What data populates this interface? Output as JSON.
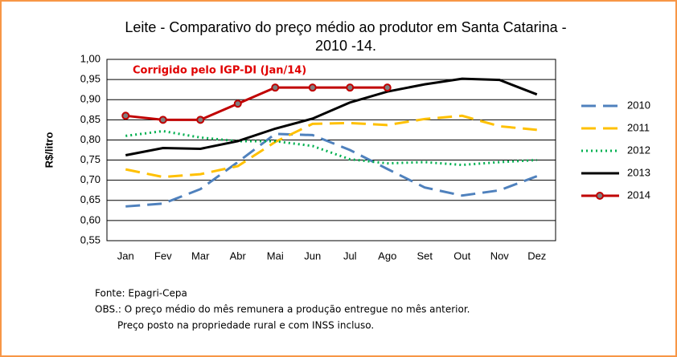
{
  "chart_data": {
    "type": "line",
    "title": [
      "Leite - Comparativo do preço médio ao produtor em Santa Catarina -",
      "2010 -14."
    ],
    "annotation": "Corrigido pelo IGP-DI (Jan/14)",
    "y_label": "R$/litro",
    "categories": [
      "Jan",
      "Fev",
      "Mar",
      "Abr",
      "Mai",
      "Jun",
      "Jul",
      "Ago",
      "Set",
      "Out",
      "Nov",
      "Dez"
    ],
    "series": [
      {
        "name": "2010",
        "color": "#4f81bd",
        "dash": "dashed",
        "values": [
          0.635,
          0.642,
          0.678,
          0.745,
          0.815,
          0.812,
          0.775,
          0.728,
          0.682,
          0.662,
          0.675,
          0.71
        ]
      },
      {
        "name": "2011",
        "color": "#ffc000",
        "dash": "dashed",
        "values": [
          0.727,
          0.708,
          0.715,
          0.735,
          0.795,
          0.84,
          0.842,
          0.837,
          0.852,
          0.86,
          0.834,
          0.825
        ]
      },
      {
        "name": "2012",
        "color": "#00b050",
        "dash": "dotted",
        "values": [
          0.81,
          0.822,
          0.806,
          0.797,
          0.797,
          0.785,
          0.752,
          0.742,
          0.745,
          0.738,
          0.745,
          0.75
        ]
      },
      {
        "name": "2013",
        "color": "#000000",
        "dash": "solid",
        "values": [
          0.762,
          0.78,
          0.778,
          0.797,
          0.828,
          0.853,
          0.893,
          0.92,
          0.938,
          0.952,
          0.949,
          0.913
        ]
      },
      {
        "name": "2014",
        "color": "#c00000",
        "dash": "solid",
        "markers": true,
        "values": [
          0.86,
          0.85,
          0.85,
          0.89,
          0.93,
          0.93,
          0.93,
          0.93,
          null,
          null,
          null,
          null
        ]
      }
    ],
    "ylim": [
      0.55,
      1.0
    ],
    "yticks": [
      {
        "value": 0.55,
        "label": "0,55"
      },
      {
        "value": 0.6,
        "label": "0,60"
      },
      {
        "value": 0.65,
        "label": "0,65"
      },
      {
        "value": 0.7,
        "label": "0,70"
      },
      {
        "value": 0.75,
        "label": "0,75"
      },
      {
        "value": 0.8,
        "label": "0,80"
      },
      {
        "value": 0.85,
        "label": "0,85"
      },
      {
        "value": 0.9,
        "label": "0,90"
      },
      {
        "value": 0.95,
        "label": "0,95"
      },
      {
        "value": 1.0,
        "label": "1,00"
      }
    ],
    "grid": true,
    "legend": "right",
    "notes": {
      "source": "Fonte: Epagri-Cepa",
      "obs": [
        "OBS.: O preço médio do mês remunera a produção entregue no mês anterior.",
        "Preço posto na propriedade rural e com INSS incluso."
      ]
    }
  }
}
